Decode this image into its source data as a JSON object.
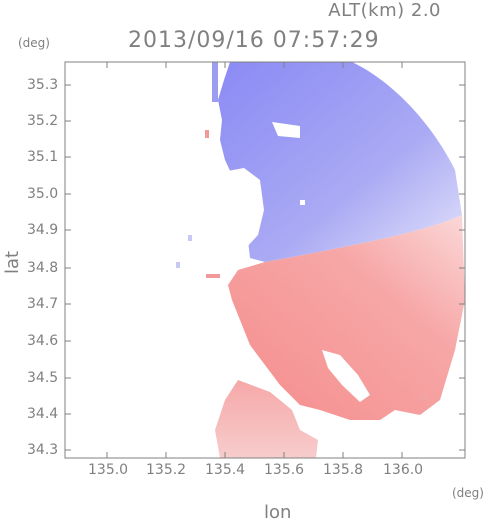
{
  "header": {
    "altitude_label": "ALT(km) 2.0",
    "timestamp": "2013/09/16 07:57:29"
  },
  "axes": {
    "x_label": "lon",
    "y_label": "lat",
    "x_unit": "(deg)",
    "y_unit": "(deg)",
    "x_ticks": [
      "135.0",
      "135.2",
      "135.4",
      "135.6",
      "135.8",
      "136.0"
    ],
    "y_ticks": [
      "35.3",
      "35.2",
      "35.1",
      "35.0",
      "34.9",
      "34.8",
      "34.7",
      "34.6",
      "34.5",
      "34.4",
      "34.3"
    ]
  },
  "colors": {
    "approaching": "#8c8cf5",
    "receding": "#f58c8c",
    "frame": "#808080"
  }
}
